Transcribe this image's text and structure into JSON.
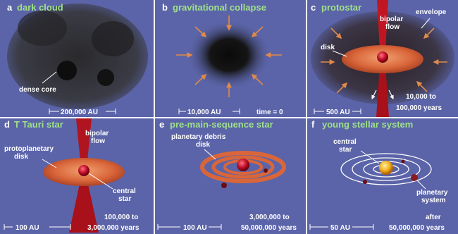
{
  "panels": {
    "a": {
      "letter": "a",
      "title": "dark cloud",
      "core_label": "dense core",
      "scale": "200,000 AU"
    },
    "b": {
      "letter": "b",
      "title": "gravitational collapse",
      "scale": "10,000 AU",
      "time": "time = 0"
    },
    "c": {
      "letter": "c",
      "title": "protostar",
      "flow_line1": "bipolar",
      "flow_line2": "flow",
      "envelope": "envelope",
      "disk": "disk",
      "scale": "500 AU",
      "time_line1": "10,000 to",
      "time_line2": "100,000 years"
    },
    "d": {
      "letter": "d",
      "title": "T Tauri star",
      "flow_line1": "bipolar",
      "flow_line2": "flow",
      "disk_line1": "protoplanetary",
      "disk_line2": "disk",
      "star_line1": "central",
      "star_line2": "star",
      "scale": "100 AU",
      "time_line1": "100,000 to",
      "time_line2": "3,000,000 years"
    },
    "e": {
      "letter": "e",
      "title": "pre-main-sequence star",
      "debris_line1": "planetary debris",
      "debris_line2": "disk",
      "scale": "100 AU",
      "time_line1": "3,000,000 to",
      "time_line2": "50,000,000 years"
    },
    "f": {
      "letter": "f",
      "title": "young stellar system",
      "star_line1": "central",
      "star_line2": "star",
      "system_line1": "planetary",
      "system_line2": "system",
      "scale": "50 AU",
      "time_line1": "after",
      "time_line2": "50,000,000 years"
    }
  },
  "colors": {
    "panel_bg": "#5b64a8",
    "cloud": "#1a1a1a",
    "arrow": "#e08a4a",
    "disk": "#d9663a",
    "star_red": "#c0102a",
    "star_yellow": "#f0b020",
    "jet": "#b0141e",
    "title_green": "#9fe08a",
    "label_white": "#ffffff"
  }
}
